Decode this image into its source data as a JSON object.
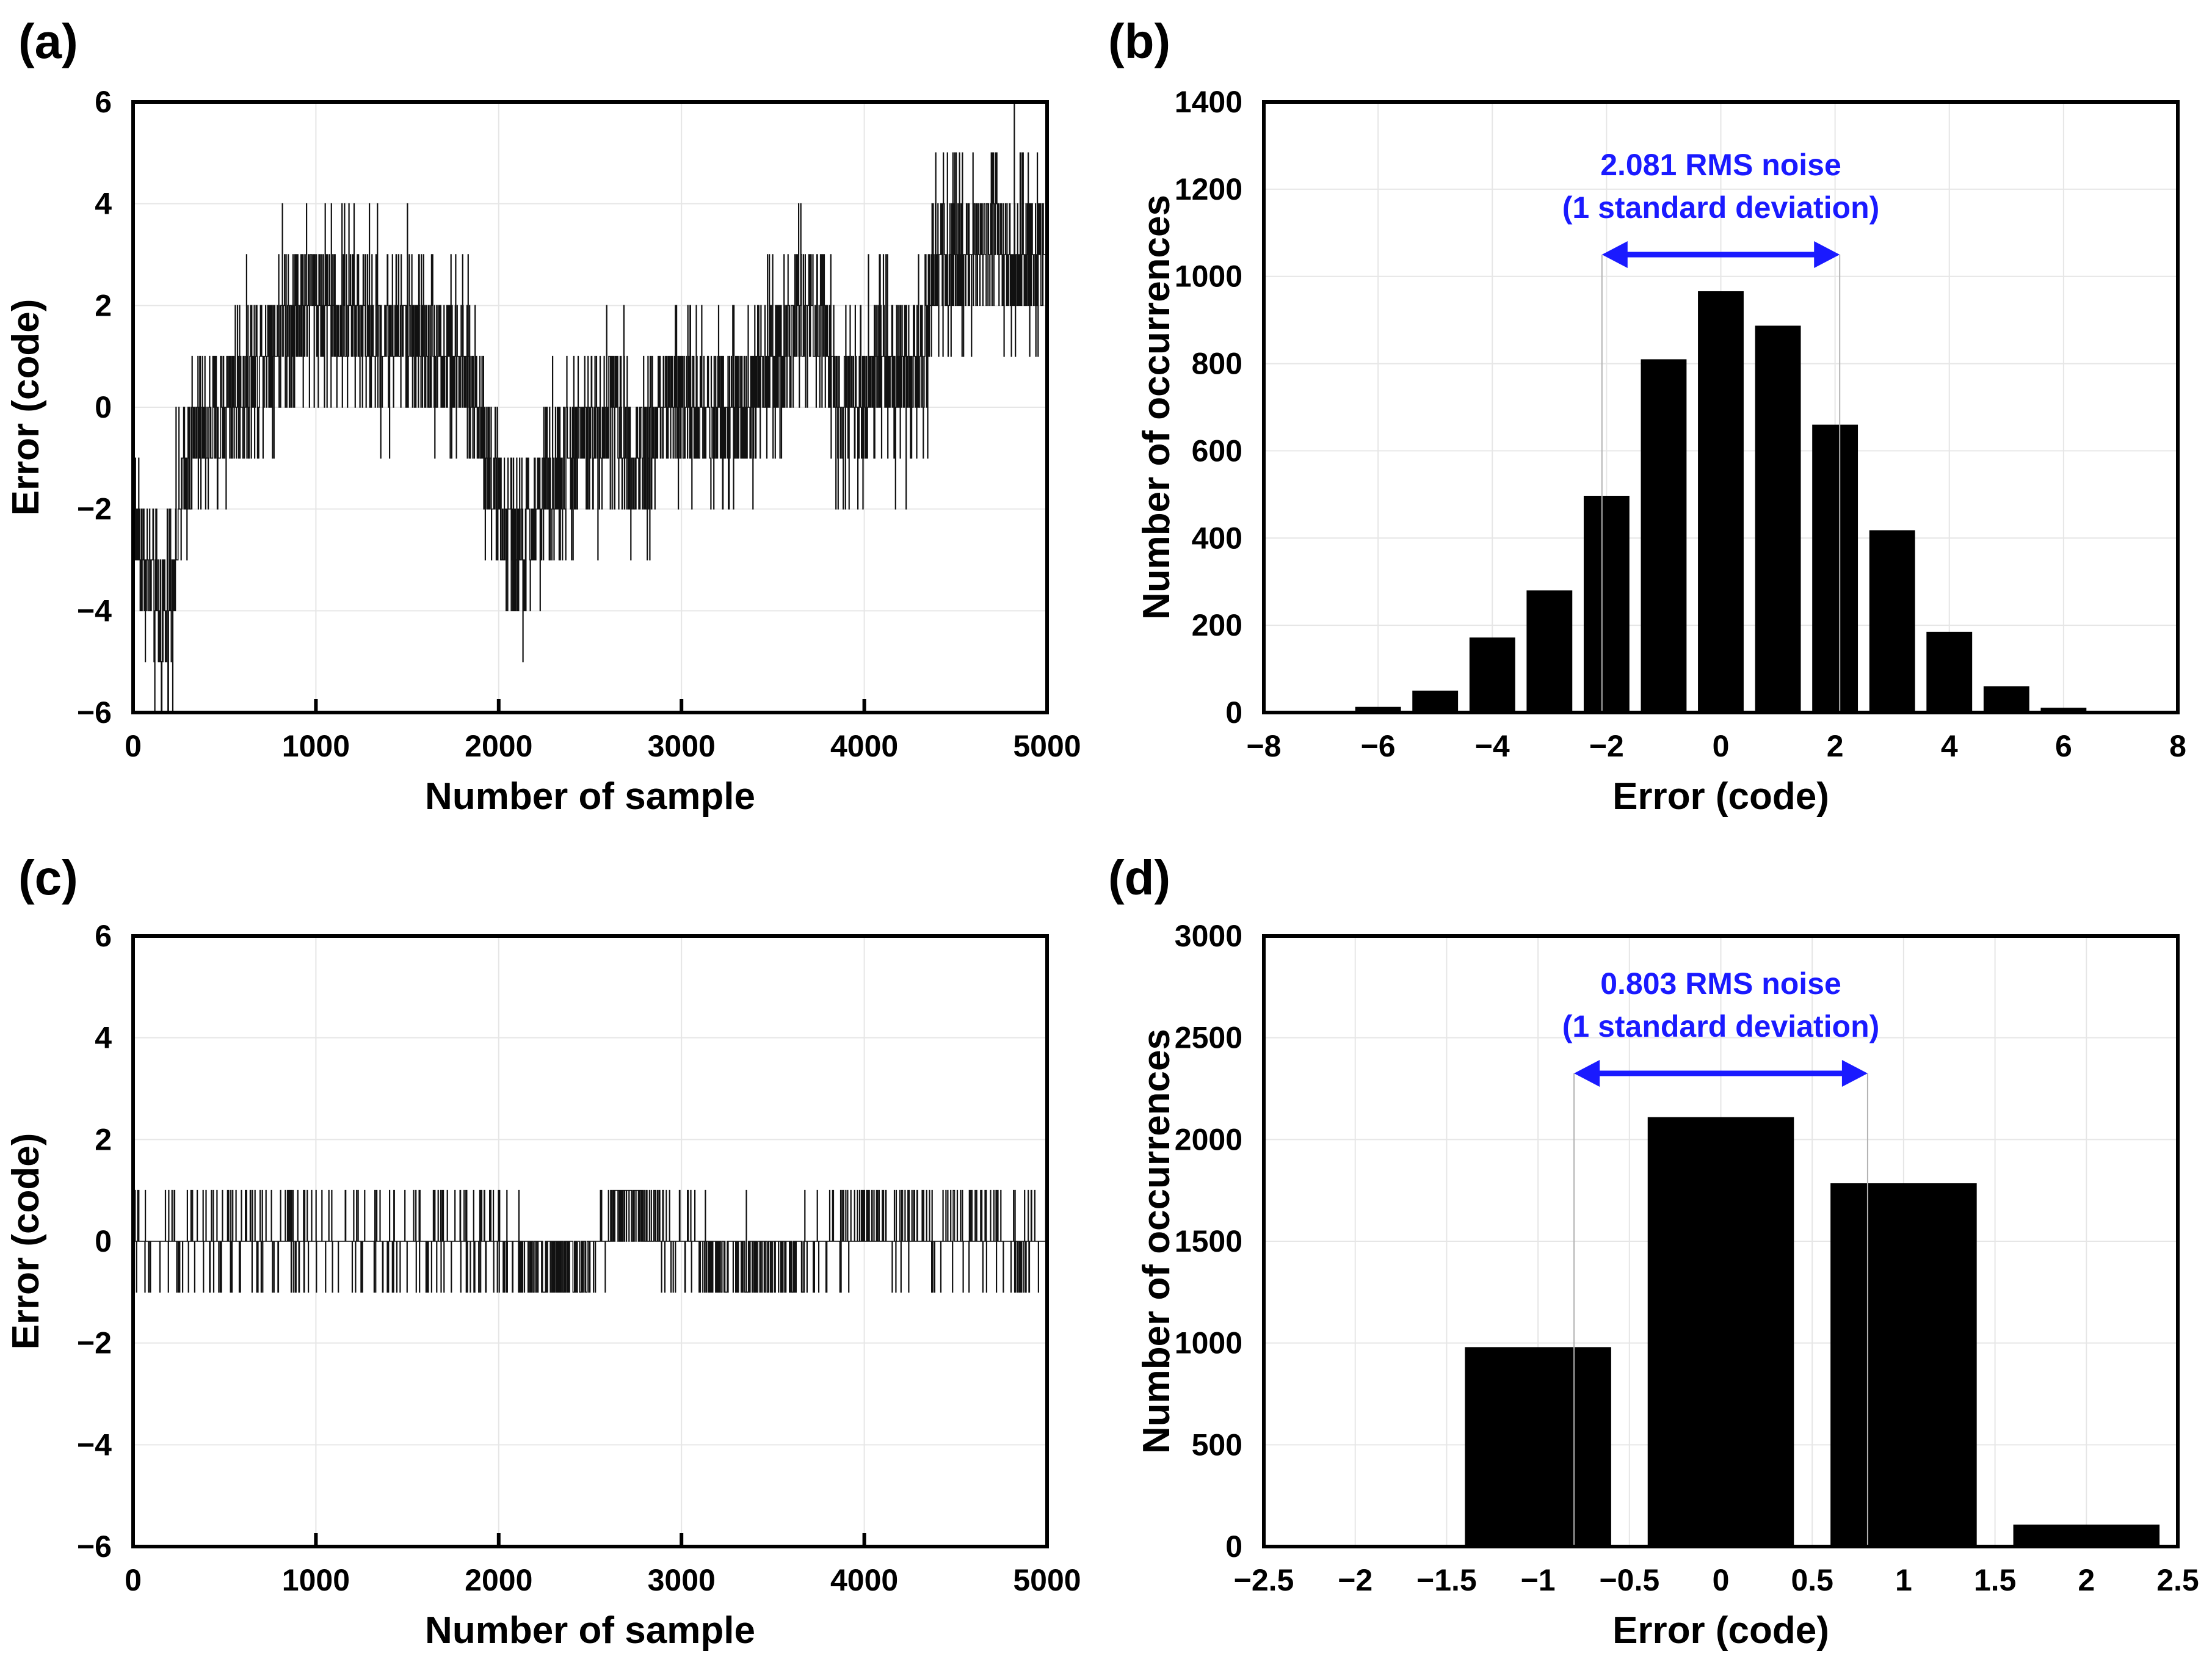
{
  "colors": {
    "axis": "#000000",
    "grid": "#e6e6e6",
    "trace": "#111111",
    "bar": "#000000",
    "annotation": "#1a1aff",
    "sigma_line": "#b3b3b3"
  },
  "chart_data": [
    {
      "panel_label": "(a)",
      "type": "line",
      "title": "",
      "xlabel": "Number of sample",
      "ylabel": "Error (code)",
      "xlim": [
        0,
        5000
      ],
      "ylim": [
        -6,
        6
      ],
      "x_ticks": [
        0,
        1000,
        2000,
        3000,
        4000,
        5000
      ],
      "x_tick_labels": [
        "0",
        "1000",
        "2000",
        "3000",
        "4000",
        "5000"
      ],
      "y_ticks": [
        -6,
        -4,
        -2,
        0,
        2,
        4,
        6
      ],
      "y_tick_labels": [
        "−6",
        "−4",
        "−2",
        "0",
        "2",
        "4",
        "6"
      ],
      "trace": {
        "n_samples": 5000,
        "range_min": -6,
        "range_max": 6,
        "drift_x": [
          0,
          60,
          130,
          180,
          300,
          500,
          700,
          900,
          1100,
          1300,
          1500,
          1700,
          1900,
          2000,
          2100,
          2200,
          2400,
          2600,
          2750,
          2900,
          3100,
          3300,
          3500,
          3700,
          3900,
          4100,
          4300,
          4400,
          4500,
          4700,
          4900,
          5000
        ],
        "drift_y": [
          -2,
          -3,
          -4,
          -4,
          -1,
          0,
          1,
          2,
          2,
          1.5,
          1.5,
          1,
          0,
          -2,
          -3,
          -2,
          -1,
          0,
          -1,
          0,
          0,
          0,
          1,
          2,
          0,
          1,
          0.5,
          2.5,
          3,
          3.5,
          3,
          2.5
        ],
        "noise_amplitude": 2.081
      }
    },
    {
      "panel_label": "(b)",
      "type": "bar",
      "title": "",
      "xlabel": "Error (code)",
      "ylabel": "Number of occurrences",
      "xlim": [
        -8,
        8
      ],
      "ylim": [
        0,
        1400
      ],
      "x_ticks": [
        -8,
        -6,
        -4,
        -2,
        0,
        2,
        4,
        6,
        8
      ],
      "x_tick_labels": [
        "−8",
        "−6",
        "−4",
        "−2",
        "0",
        "2",
        "4",
        "6",
        "8"
      ],
      "y_ticks": [
        0,
        200,
        400,
        600,
        800,
        1000,
        1200,
        1400
      ],
      "y_tick_labels": [
        "0",
        "200",
        "400",
        "600",
        "800",
        "1000",
        "1200",
        "1400"
      ],
      "bar_width": 0.8,
      "categories": [
        -7,
        -6,
        -5,
        -4,
        -3,
        -2,
        -1,
        0,
        1,
        2,
        3,
        4,
        5,
        6,
        7
      ],
      "values": [
        2,
        13,
        50,
        172,
        280,
        497,
        810,
        966,
        887,
        660,
        418,
        185,
        60,
        11,
        2
      ],
      "annotation": {
        "line1": "2.081 RMS noise",
        "line2": "(1 standard deviation)",
        "sigma": 2.081
      }
    },
    {
      "panel_label": "(c)",
      "type": "line",
      "title": "",
      "xlabel": "Number of sample",
      "ylabel": "Error (code)",
      "xlim": [
        0,
        5000
      ],
      "ylim": [
        -6,
        6
      ],
      "x_ticks": [
        0,
        1000,
        2000,
        3000,
        4000,
        5000
      ],
      "x_tick_labels": [
        "0",
        "1000",
        "2000",
        "3000",
        "4000",
        "5000"
      ],
      "y_ticks": [
        -6,
        -4,
        -2,
        0,
        2,
        4,
        6
      ],
      "y_tick_labels": [
        "−6",
        "−4",
        "−2",
        "0",
        "2",
        "4",
        "6"
      ],
      "trace": {
        "n_samples": 5000,
        "range_min": -2,
        "range_max": 2,
        "drift_x": [
          0,
          500,
          1000,
          1500,
          2000,
          2350,
          2450,
          2700,
          2800,
          3200,
          3600,
          4000,
          4500,
          5000
        ],
        "drift_y": [
          0,
          0,
          0,
          0,
          0,
          -0.6,
          -0.4,
          0.8,
          0.4,
          -0.4,
          -0.3,
          0.2,
          0.1,
          0
        ],
        "noise_amplitude": 0.803
      }
    },
    {
      "panel_label": "(d)",
      "type": "bar",
      "title": "",
      "xlabel": "Error (code)",
      "ylabel": "Number of occurrences",
      "xlim": [
        -2.5,
        2.5
      ],
      "ylim": [
        0,
        3000
      ],
      "x_ticks": [
        -2.5,
        -2,
        -1.5,
        -1,
        -0.5,
        0,
        0.5,
        1,
        1.5,
        2,
        2.5
      ],
      "x_tick_labels": [
        "−2.5",
        "−2",
        "−1.5",
        "−1",
        "−0.5",
        "0",
        "0.5",
        "1",
        "1.5",
        "2",
        "2.5"
      ],
      "y_ticks": [
        0,
        500,
        1000,
        1500,
        2000,
        2500,
        3000
      ],
      "y_tick_labels": [
        "0",
        "500",
        "1000",
        "1500",
        "2000",
        "2500",
        "3000"
      ],
      "bar_width": 0.8,
      "categories": [
        -1,
        0,
        1,
        2
      ],
      "values": [
        980,
        2110,
        1785,
        108
      ],
      "annotation": {
        "line1": "0.803 RMS noise",
        "line2": "(1 standard deviation)",
        "sigma": 0.803
      }
    }
  ]
}
